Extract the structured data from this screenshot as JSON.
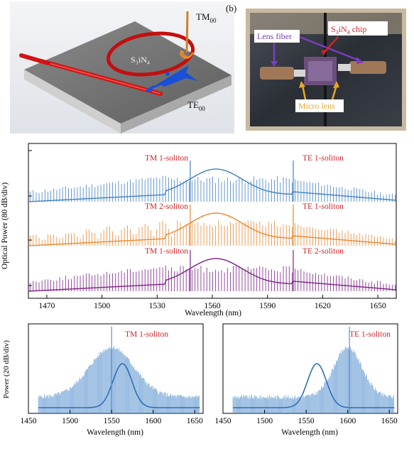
{
  "panel_a": {
    "material": "S₃iN₄",
    "mode_tm": "TM",
    "mode_tm_sub": "00",
    "mode_te": "TE",
    "mode_te_sub": "00"
  },
  "panel_b": {
    "letter": "(b)",
    "lens_fiber": "Lens fiber",
    "chip_prefix": "S",
    "chip_sub1": "3",
    "chip_mid": "iN",
    "chip_sub2": "4",
    "chip_suffix": " chip",
    "micro_lens": "Micro lens"
  },
  "colors": {
    "blue": "#3f7fc2",
    "orange": "#e8872e",
    "purple": "#7b1f86",
    "red_label": "#d0232a",
    "light_blue": "#5a93cf"
  },
  "chart_data": [
    {
      "type": "line",
      "xlabel": "Wavelength (nm)",
      "ylabel": "Optical Power  (80 dB/div)",
      "xlim": [
        1460,
        1660
      ],
      "xticks": [
        1470,
        1500,
        1530,
        1560,
        1590,
        1620,
        1650
      ],
      "series": [
        {
          "color": "#3f7fc2",
          "label_left": "TM 1-soliton",
          "label_right": "TE 1-soliton",
          "comb_lines": [
            {
              "x": 1548
            },
            {
              "x": 1604
            }
          ]
        },
        {
          "color": "#e8872e",
          "label_left": "TM 2-soliton",
          "label_right": "TE 1-soliton",
          "comb_lines": [
            {
              "x": 1548
            },
            {
              "x": 1604
            }
          ]
        },
        {
          "color": "#7b1f86",
          "label_left": "TM 1-soliton",
          "label_right": "TE 2-soliton",
          "comb_lines": [
            {
              "x": 1548
            },
            {
              "x": 1604
            }
          ]
        }
      ]
    },
    {
      "type": "line",
      "xlabel": "Wavelength (nm)",
      "ylabel": "Power  (20 dB/div)",
      "xlim": [
        1450,
        1660
      ],
      "xticks": [
        1450,
        1500,
        1550,
        1600,
        1650
      ],
      "series": [
        {
          "color": "#5a93cf",
          "label": "TM 1-soliton",
          "pump": 1550
        }
      ]
    },
    {
      "type": "line",
      "xlabel": "Wavelength (nm)",
      "xlim": [
        1450,
        1660
      ],
      "xticks": [
        1450,
        1500,
        1550,
        1600,
        1650
      ],
      "series": [
        {
          "color": "#5a93cf",
          "label": "TE 1-soliton",
          "pump": 1602
        }
      ]
    }
  ]
}
